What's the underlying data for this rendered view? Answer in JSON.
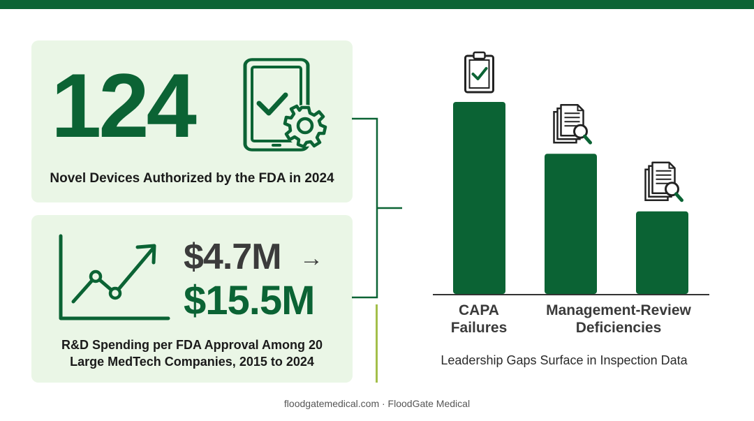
{
  "colors": {
    "brand": "#0b6334",
    "card_bg": "#eaf6e6",
    "accent": "#a3bf4a",
    "dark_text": "#3b3b3b"
  },
  "stat1": {
    "value": "124",
    "caption": "Novel Devices Authorized by the FDA in 2024",
    "icon": "tablet-check-gear-icon"
  },
  "stat2": {
    "from": "$4.7M",
    "arrow": "→",
    "to": "$15.5M",
    "caption_line1": "R&D Spending per FDA Approval Among 20",
    "caption_line2": "Large MedTech Companies, 2015 to 2024",
    "icon": "trend-up-chart-icon"
  },
  "chart_data": {
    "type": "bar",
    "categories": [
      "CAPA Failures",
      "Management-Review Deficiencies",
      ""
    ],
    "category_lines": [
      [
        "CAPA",
        "Failures"
      ],
      [
        "Management-Review",
        "Deficiencies"
      ],
      [
        "",
        ""
      ]
    ],
    "values": [
      100,
      73,
      43
    ],
    "icons": [
      "clipboard-check-icon",
      "document-search-icon",
      "document-search-icon"
    ],
    "caption": "Leadership Gaps Surface in Inspection Data",
    "ylim": [
      0,
      100
    ],
    "grid": false,
    "legend": "none"
  },
  "footer": {
    "text": "floodgatemedical.com · FloodGate Medical"
  }
}
